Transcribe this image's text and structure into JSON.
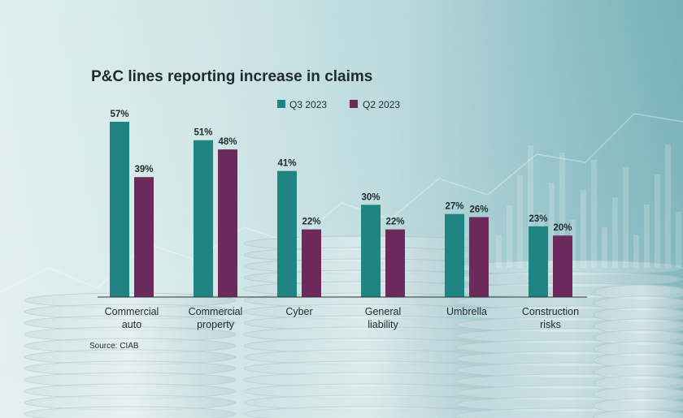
{
  "colors": {
    "q3": "#1f8482",
    "q2": "#6b2a5b",
    "text": "#1f2a2c",
    "axis": "#2b3436"
  },
  "chart_data": {
    "type": "bar",
    "title": "P&C lines reporting increase in claims",
    "categories": [
      [
        "Commercial",
        "auto"
      ],
      [
        "Commercial",
        "property"
      ],
      [
        "Cyber"
      ],
      [
        "General",
        "liability"
      ],
      [
        "Umbrella"
      ],
      [
        "Construction",
        "risks"
      ]
    ],
    "series": [
      {
        "name": "Q3 2023",
        "values": [
          57,
          51,
          41,
          30,
          27,
          23
        ],
        "labels": [
          "57%",
          "51%",
          "41%",
          "30%",
          "27%",
          "23%"
        ]
      },
      {
        "name": "Q2 2023",
        "values": [
          39,
          48,
          22,
          22,
          26,
          20
        ],
        "labels": [
          "39%",
          "48%",
          "22%",
          "22%",
          "26%",
          "20%"
        ]
      }
    ],
    "ylim": [
      0,
      60
    ],
    "grid": false,
    "legend": "top",
    "source": "Source: CIAB"
  }
}
